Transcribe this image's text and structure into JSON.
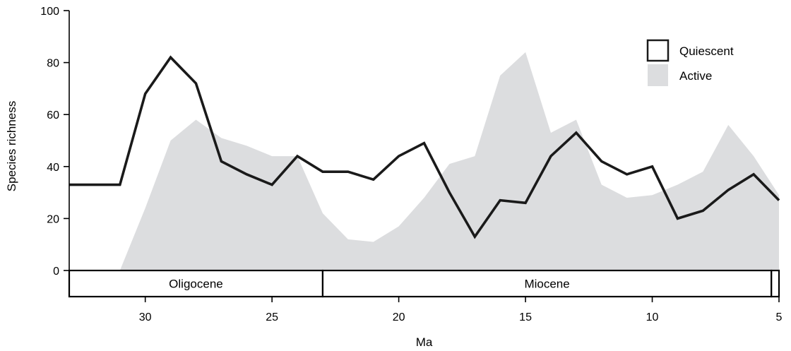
{
  "chart_data": {
    "type": "area",
    "title": "",
    "xlabel": "Ma",
    "ylabel": "Species richness",
    "x_reversed": true,
    "xlim": [
      33,
      5
    ],
    "ylim": [
      0,
      100
    ],
    "xticks": [
      30,
      25,
      20,
      15,
      10,
      5
    ],
    "yticks": [
      0,
      20,
      40,
      60,
      80,
      100
    ],
    "grid": false,
    "legend_position": "top-right",
    "series": [
      {
        "name": "Quiescent",
        "style": "line",
        "color": "#1a1a1a",
        "x": [
          33,
          32,
          31,
          30,
          29,
          28,
          27,
          26,
          25,
          24,
          23,
          22,
          21,
          20,
          19,
          18,
          17,
          16,
          15,
          14,
          13,
          12,
          11,
          10,
          9,
          8,
          7,
          6,
          5
        ],
        "values": [
          33,
          33,
          33,
          68,
          82,
          72,
          42,
          37,
          33,
          44,
          38,
          38,
          35,
          44,
          49,
          30,
          13,
          27,
          26,
          44,
          53,
          42,
          37,
          40,
          20,
          23,
          31,
          37,
          27
        ]
      },
      {
        "name": "Active",
        "style": "area",
        "color": "#dcdddf",
        "x": [
          31,
          30,
          29,
          28,
          27,
          26,
          25,
          24,
          23,
          22,
          21,
          20,
          19,
          18,
          17,
          16,
          15,
          14,
          13,
          12,
          11,
          10,
          9,
          8,
          7,
          6,
          5
        ],
        "values": [
          0,
          24,
          50,
          58,
          51,
          48,
          44,
          44,
          22,
          12,
          11,
          17,
          28,
          41,
          44,
          75,
          84,
          53,
          58,
          33,
          28,
          29,
          33,
          38,
          56,
          44,
          29
        ]
      }
    ],
    "epochs": [
      {
        "label": "Oligocene",
        "start": 33,
        "end": 23
      },
      {
        "label": "Miocene",
        "start": 23,
        "end": 5.3
      },
      {
        "label": "",
        "start": 5.3,
        "end": 5
      }
    ]
  }
}
